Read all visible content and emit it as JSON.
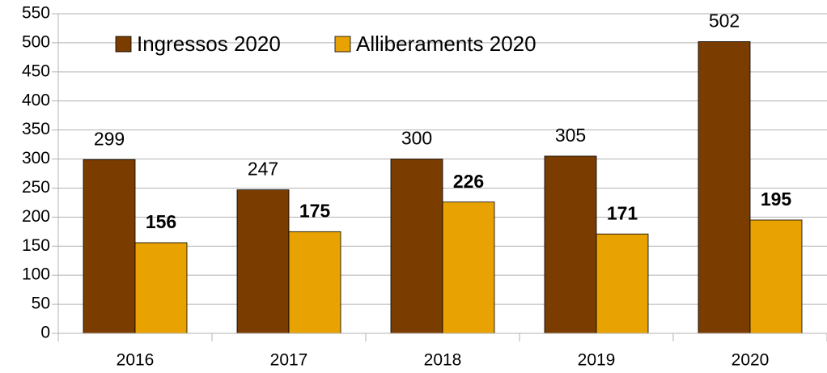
{
  "chart_data": {
    "type": "bar",
    "categories": [
      "2016",
      "2017",
      "2018",
      "2019",
      "2020"
    ],
    "series": [
      {
        "name": "Ingressos 2020",
        "color": "#7b3c00",
        "values": [
          299,
          247,
          300,
          305,
          502
        ]
      },
      {
        "name": "Alliberaments 2020",
        "color": "#e8a202",
        "values": [
          156,
          175,
          226,
          171,
          195
        ]
      }
    ],
    "ylim": [
      0,
      550
    ],
    "yticks": [
      0,
      50,
      100,
      150,
      200,
      250,
      300,
      350,
      400,
      450,
      500,
      550
    ],
    "grid": true,
    "legend": "top-left"
  }
}
